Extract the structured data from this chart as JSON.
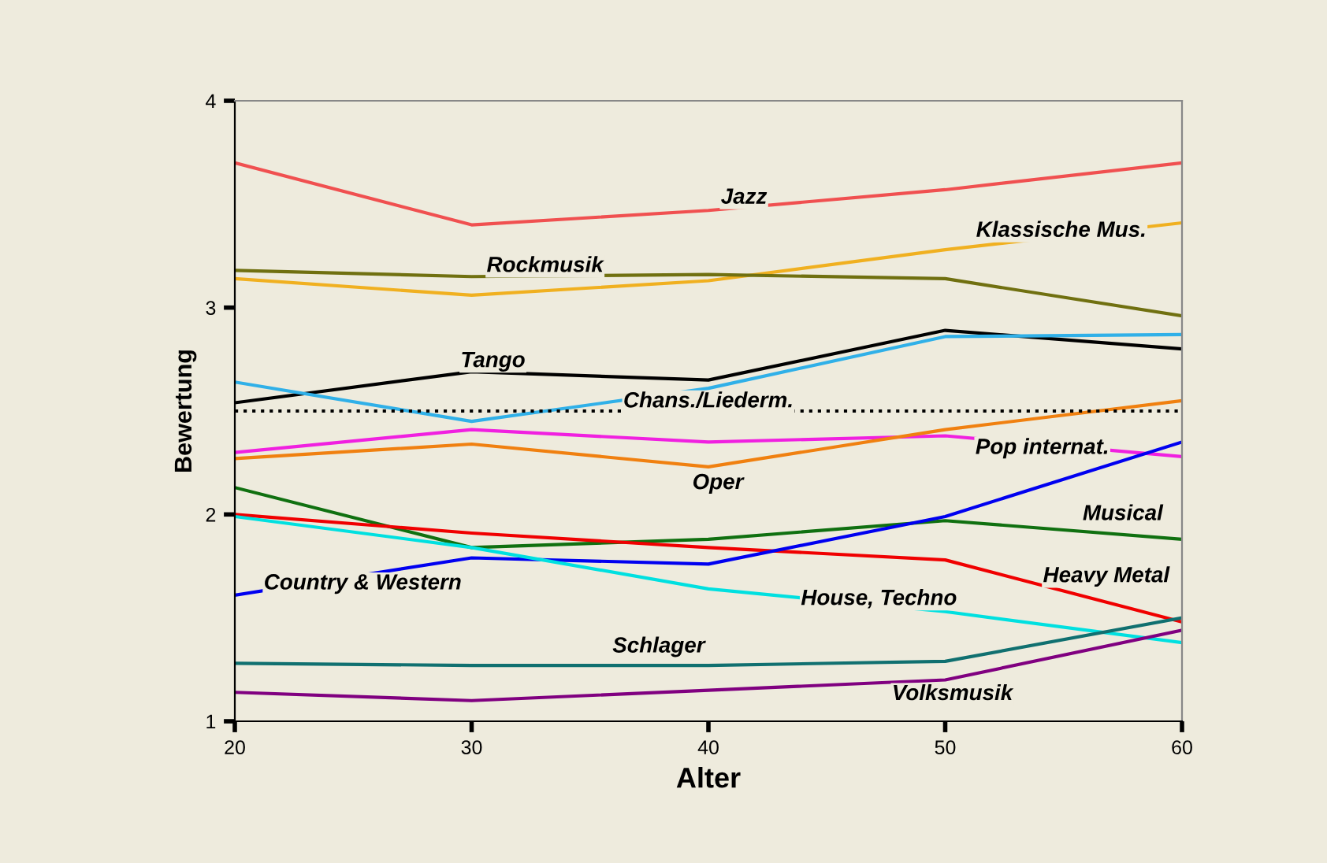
{
  "chart_data": {
    "type": "line",
    "xlabel": "Alter",
    "ylabel": "Bewertung",
    "x": [
      20,
      30,
      40,
      50,
      60
    ],
    "xlim": [
      20,
      60
    ],
    "xticks": [
      20,
      30,
      40,
      50,
      60
    ],
    "ylim": [
      1,
      4
    ],
    "yticks": [
      1,
      2,
      3,
      4
    ],
    "grid": false,
    "legend": false,
    "marker": "none",
    "line_style": "solid",
    "ref_lines": [
      {
        "axis": "y",
        "value": 2.5,
        "color": "#000000",
        "line_style": "dotted"
      }
    ],
    "series": [
      {
        "name": "Jazz",
        "color": "#f05050",
        "values": [
          3.7,
          3.4,
          3.47,
          3.57,
          3.7
        ]
      },
      {
        "name": "Klassische Mus.",
        "color": "#f0b020",
        "values": [
          3.14,
          3.06,
          3.13,
          3.28,
          3.41
        ]
      },
      {
        "name": "Rockmusik",
        "color": "#707010",
        "values": [
          3.18,
          3.15,
          3.16,
          3.14,
          2.96
        ]
      },
      {
        "name": "Tango",
        "color": "#000000",
        "values": [
          2.54,
          2.69,
          2.65,
          2.89,
          2.8
        ]
      },
      {
        "name": "Chans./Liederm.",
        "color": "#30b0e8",
        "values": [
          2.64,
          2.45,
          2.61,
          2.86,
          2.87
        ]
      },
      {
        "name": "Pop internat.",
        "color": "#f020e0",
        "values": [
          2.3,
          2.41,
          2.35,
          2.38,
          2.28
        ]
      },
      {
        "name": "Oper",
        "color": "#f08010",
        "values": [
          2.27,
          2.34,
          2.23,
          2.41,
          2.55
        ]
      },
      {
        "name": "Musical",
        "color": "#107010",
        "values": [
          2.13,
          1.84,
          1.88,
          1.97,
          1.88
        ]
      },
      {
        "name": "Heavy Metal",
        "color": "#f00000",
        "values": [
          2.0,
          1.91,
          1.84,
          1.78,
          1.48
        ]
      },
      {
        "name": "Country & Western",
        "color": "#0000f0",
        "values": [
          1.61,
          1.79,
          1.76,
          1.99,
          2.35
        ]
      },
      {
        "name": "House, Techno",
        "color": "#00e0e0",
        "values": [
          1.99,
          1.84,
          1.64,
          1.53,
          1.38
        ]
      },
      {
        "name": "Schlager",
        "color": "#107070",
        "values": [
          1.28,
          1.27,
          1.27,
          1.29,
          1.5
        ]
      },
      {
        "name": "Volksmusik",
        "color": "#800080",
        "values": [
          1.14,
          1.1,
          1.15,
          1.2,
          1.44
        ]
      }
    ]
  }
}
